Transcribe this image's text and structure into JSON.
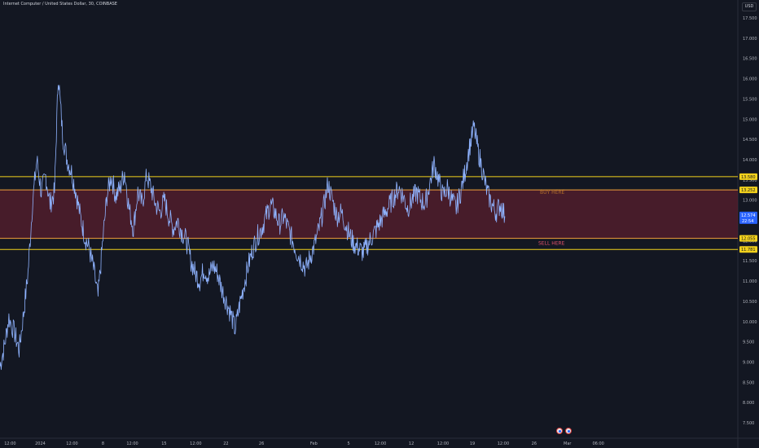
{
  "header": {
    "symbol_title": "Internet Computer / United States Dollar, 30, COINBASE",
    "currency": "USD"
  },
  "colors": {
    "background": "#131722",
    "price_line": "#8fb3ff",
    "level_line": "#f2d11c",
    "zone_fill": "#5a1f2e",
    "zone_border": "#f2a33a",
    "buy_text": "#b36e2a",
    "sell_text": "#e0506a",
    "current_badge": "#2962ff",
    "grid": "#1e222d"
  },
  "chart_data": {
    "type": "line",
    "title": "Internet Computer / United States Dollar, 30, COINBASE",
    "xlabel": "",
    "ylabel": "",
    "ylim": [
      7.1,
      17.6
    ],
    "y_ticks": [
      7.5,
      8.0,
      8.5,
      9.0,
      9.5,
      10.0,
      10.5,
      11.0,
      11.5,
      12.0,
      12.5,
      13.0,
      13.5,
      14.0,
      14.5,
      15.0,
      15.5,
      16.0,
      16.5,
      17.0,
      17.5
    ],
    "y_tick_labels": [
      "7.500",
      "8.000",
      "8.500",
      "9.000",
      "9.500",
      "10.000",
      "10.500",
      "11.000",
      "11.500",
      "12.000",
      "12.500",
      "13.000",
      "13.500",
      "14.000",
      "14.500",
      "15.000",
      "15.500",
      "16.000",
      "16.500",
      "17.000",
      "17.500"
    ],
    "x_tick_labels": [
      "12:00",
      "2024",
      "12:00",
      "8",
      "12:00",
      "15",
      "12:00",
      "22",
      "26",
      "Feb",
      "5",
      "12:00",
      "12",
      "12:00",
      "19",
      "12:00",
      "26",
      "Mar",
      "06:00"
    ],
    "x_tick_frac": [
      0.0137,
      0.0547,
      0.0978,
      0.1398,
      0.1796,
      0.2226,
      0.2656,
      0.3065,
      0.3548,
      0.4258,
      0.4731,
      0.5161,
      0.5581,
      0.6011,
      0.6409,
      0.6828,
      0.7247,
      0.7699,
      0.8118
    ],
    "grid": false,
    "legend": "none",
    "series": [
      {
        "values": [
          [
            0.0,
            8.9
          ],
          [
            0.006,
            9.4
          ],
          [
            0.012,
            10.1
          ],
          [
            0.02,
            9.7
          ],
          [
            0.026,
            9.3
          ],
          [
            0.032,
            10.2
          ],
          [
            0.038,
            11.2
          ],
          [
            0.044,
            12.9
          ],
          [
            0.05,
            14.0
          ],
          [
            0.056,
            13.2
          ],
          [
            0.062,
            13.6
          ],
          [
            0.068,
            12.9
          ],
          [
            0.074,
            13.2
          ],
          [
            0.079,
            16.1
          ],
          [
            0.085,
            14.6
          ],
          [
            0.091,
            14.0
          ],
          [
            0.097,
            13.7
          ],
          [
            0.103,
            13.2
          ],
          [
            0.109,
            12.6
          ],
          [
            0.115,
            12.1
          ],
          [
            0.121,
            11.8
          ],
          [
            0.127,
            11.3
          ],
          [
            0.133,
            10.6
          ],
          [
            0.139,
            11.9
          ],
          [
            0.145,
            13.1
          ],
          [
            0.151,
            13.6
          ],
          [
            0.157,
            13.1
          ],
          [
            0.163,
            13.3
          ],
          [
            0.169,
            13.7
          ],
          [
            0.175,
            12.8
          ],
          [
            0.181,
            12.3
          ],
          [
            0.187,
            13.2
          ],
          [
            0.193,
            12.9
          ],
          [
            0.199,
            13.6
          ],
          [
            0.205,
            13.3
          ],
          [
            0.211,
            12.9
          ],
          [
            0.217,
            12.7
          ],
          [
            0.223,
            13.0
          ],
          [
            0.229,
            12.6
          ],
          [
            0.235,
            12.3
          ],
          [
            0.241,
            12.5
          ],
          [
            0.247,
            12.2
          ],
          [
            0.253,
            12.0
          ],
          [
            0.259,
            11.5
          ],
          [
            0.265,
            11.2
          ],
          [
            0.271,
            11.0
          ],
          [
            0.277,
            11.3
          ],
          [
            0.283,
            11.1
          ],
          [
            0.289,
            11.4
          ],
          [
            0.295,
            11.2
          ],
          [
            0.301,
            10.8
          ],
          [
            0.307,
            10.5
          ],
          [
            0.313,
            10.2
          ],
          [
            0.319,
            9.8
          ],
          [
            0.325,
            10.4
          ],
          [
            0.331,
            10.9
          ],
          [
            0.337,
            11.4
          ],
          [
            0.343,
            11.8
          ],
          [
            0.349,
            12.1
          ],
          [
            0.355,
            12.3
          ],
          [
            0.361,
            12.6
          ],
          [
            0.367,
            12.9
          ],
          [
            0.373,
            12.7
          ],
          [
            0.379,
            12.4
          ],
          [
            0.385,
            12.6
          ],
          [
            0.391,
            12.3
          ],
          [
            0.397,
            12.0
          ],
          [
            0.403,
            11.7
          ],
          [
            0.409,
            11.5
          ],
          [
            0.415,
            11.3
          ],
          [
            0.421,
            11.6
          ],
          [
            0.427,
            11.9
          ],
          [
            0.433,
            12.3
          ],
          [
            0.439,
            12.8
          ],
          [
            0.445,
            13.4
          ],
          [
            0.451,
            13.0
          ],
          [
            0.457,
            12.6
          ],
          [
            0.463,
            12.7
          ],
          [
            0.469,
            12.4
          ],
          [
            0.475,
            12.1
          ],
          [
            0.481,
            11.9
          ],
          [
            0.487,
            11.8
          ],
          [
            0.493,
            11.7
          ],
          [
            0.499,
            11.9
          ],
          [
            0.505,
            12.1
          ],
          [
            0.511,
            12.3
          ],
          [
            0.517,
            12.5
          ],
          [
            0.523,
            12.7
          ],
          [
            0.529,
            12.9
          ],
          [
            0.535,
            13.1
          ],
          [
            0.541,
            13.3
          ],
          [
            0.547,
            13.1
          ],
          [
            0.553,
            12.8
          ],
          [
            0.559,
            13.0
          ],
          [
            0.565,
            13.2
          ],
          [
            0.571,
            13.0
          ],
          [
            0.577,
            12.9
          ],
          [
            0.583,
            13.4
          ],
          [
            0.589,
            13.9
          ],
          [
            0.595,
            13.5
          ],
          [
            0.601,
            13.1
          ],
          [
            0.607,
            13.3
          ],
          [
            0.613,
            13.0
          ],
          [
            0.619,
            12.8
          ],
          [
            0.625,
            13.2
          ],
          [
            0.631,
            13.7
          ],
          [
            0.637,
            14.3
          ],
          [
            0.643,
            14.8
          ],
          [
            0.649,
            14.2
          ],
          [
            0.655,
            13.7
          ],
          [
            0.661,
            13.2
          ],
          [
            0.667,
            12.9
          ],
          [
            0.673,
            12.7
          ],
          [
            0.679,
            12.9
          ],
          [
            0.685,
            12.6
          ]
        ]
      }
    ],
    "horizontal_levels": [
      {
        "value": 13.58,
        "label": "13.580"
      },
      {
        "value": 13.252,
        "label": "13.252"
      },
      {
        "value": 12.055,
        "label": "12.055"
      },
      {
        "value": 11.781,
        "label": "11.781"
      }
    ],
    "zone": {
      "top": 13.252,
      "bottom": 12.055
    },
    "annotations": {
      "buy": "BUY HERE",
      "sell": "SELL HERE"
    },
    "current_price": {
      "value": 12.574,
      "label": "12.574",
      "countdown": "22:54"
    }
  }
}
